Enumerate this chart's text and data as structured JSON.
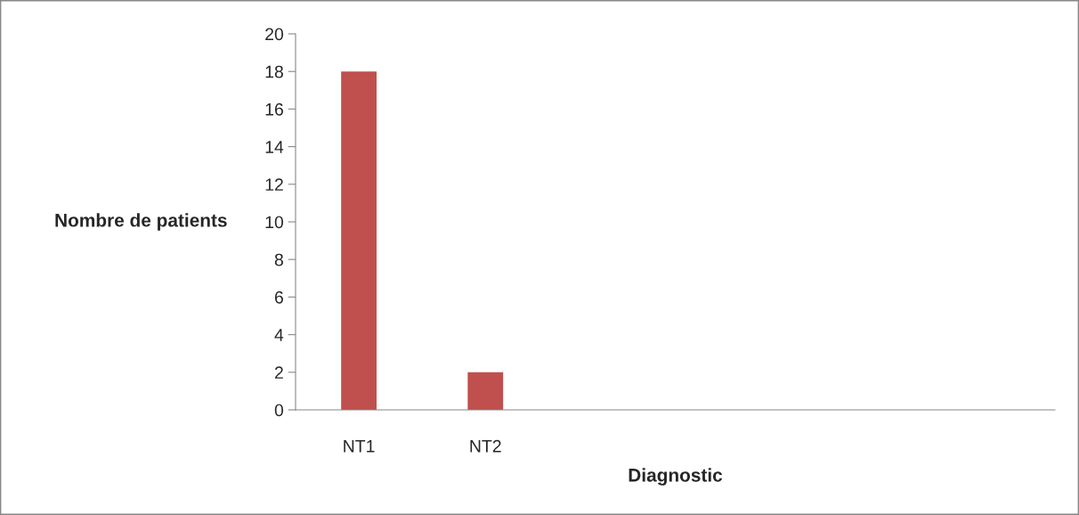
{
  "chart_data": {
    "type": "bar",
    "xlabel": "Diagnostic",
    "ylabel": "Nombre de patients",
    "categories": [
      "NT1",
      "NT2",
      null,
      null,
      null,
      null
    ],
    "values": [
      18,
      2,
      null,
      null,
      null,
      null
    ],
    "color": "#c0504d",
    "ylim": [
      0,
      20
    ],
    "yticks": [
      0,
      2,
      4,
      6,
      8,
      10,
      12,
      14,
      16,
      18,
      20
    ],
    "grid": false,
    "legend": false
  }
}
